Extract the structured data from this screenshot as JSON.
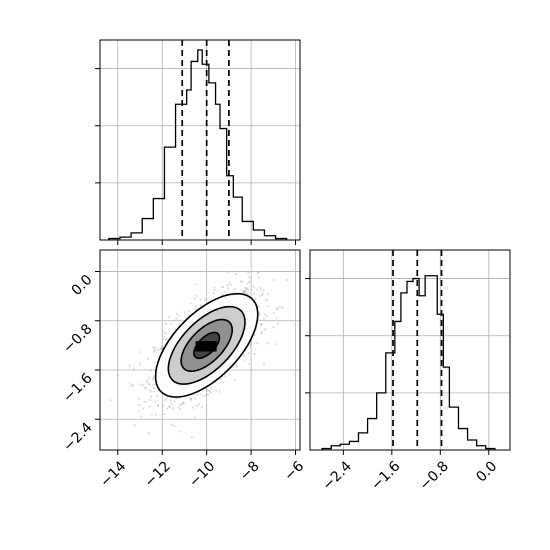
{
  "chart_data": [
    {
      "type": "histogram",
      "panel": "top-left",
      "parameter_axis": "x",
      "xlim": [
        -14.8,
        -5.8
      ],
      "grid": true,
      "bin_edges": [
        -14.4,
        -13.9,
        -13.4,
        -12.9,
        -12.4,
        -11.9,
        -11.4,
        -10.9,
        -10.7,
        -10.4,
        -10.2,
        -9.9,
        -9.6,
        -9.4,
        -9.1,
        -8.8,
        -8.4,
        -7.9,
        -7.4,
        -6.9,
        -6.4
      ],
      "counts": [
        1,
        2,
        5,
        15,
        29,
        65,
        95,
        105,
        125,
        133,
        123,
        110,
        95,
        78,
        45,
        30,
        13,
        7,
        3,
        1
      ],
      "ylim": [
        0,
        140
      ],
      "quantiles": [
        -11.1,
        -10.0,
        -9.0
      ],
      "xticks": [
        -14,
        -12,
        -10,
        -8,
        -6
      ]
    },
    {
      "type": "heatmap",
      "subtype": "2d-density-with-contours",
      "panel": "bottom-left",
      "xlim": [
        -14.8,
        -5.8
      ],
      "ylim": [
        -2.9,
        0.35
      ],
      "grid": true,
      "mean": [
        -10.0,
        -1.2
      ],
      "std": [
        1.15,
        0.42
      ],
      "correlation": 0.6,
      "contour_sigma_levels": [
        0.5,
        1.0,
        1.5,
        2.0
      ],
      "xticks": [
        -14,
        -12,
        -10,
        -8,
        -6
      ],
      "xtick_labels": [
        "−14",
        "−12",
        "−10",
        "−8",
        "−6"
      ],
      "yticks": [
        0.0,
        -0.8,
        -1.6,
        -2.4
      ],
      "ytick_labels": [
        "0.0",
        "−0.8",
        "−1.6",
        "−2.4"
      ]
    },
    {
      "type": "histogram",
      "panel": "bottom-right",
      "parameter_axis": "y",
      "xlim": [
        -2.95,
        0.35
      ],
      "grid": true,
      "bin_edges": [
        -2.75,
        -2.6,
        -2.45,
        -2.3,
        -2.15,
        -2.0,
        -1.85,
        -1.7,
        -1.55,
        -1.45,
        -1.35,
        -1.25,
        -1.15,
        -1.05,
        -0.95,
        -0.85,
        -0.75,
        -0.65,
        -0.5,
        -0.35,
        -0.2,
        -0.05,
        0.1
      ],
      "counts": [
        1,
        3,
        4,
        6,
        12,
        22,
        40,
        68,
        90,
        110,
        118,
        120,
        108,
        122,
        122,
        95,
        58,
        30,
        15,
        7,
        3,
        1
      ],
      "ylim": [
        0,
        140
      ],
      "quantiles": [
        -1.58,
        -1.18,
        -0.78
      ],
      "xticks": [
        -2.4,
        -1.6,
        -0.8,
        0.0
      ],
      "xtick_labels": [
        "−2.4",
        "−1.6",
        "−0.8",
        "0.0"
      ]
    }
  ]
}
